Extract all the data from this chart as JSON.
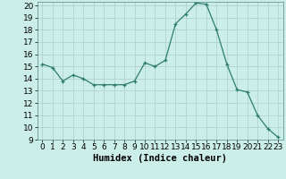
{
  "x": [
    0,
    1,
    2,
    3,
    4,
    5,
    6,
    7,
    8,
    9,
    10,
    11,
    12,
    13,
    14,
    15,
    16,
    17,
    18,
    19,
    20,
    21,
    22,
    23
  ],
  "y": [
    15.2,
    14.9,
    13.8,
    14.3,
    14.0,
    13.5,
    13.5,
    13.5,
    13.5,
    13.8,
    15.3,
    15.0,
    15.5,
    18.5,
    19.3,
    20.2,
    20.1,
    18.0,
    15.2,
    13.1,
    12.9,
    11.0,
    9.9,
    9.2
  ],
  "xlabel": "Humidex (Indice chaleur)",
  "xlim": [
    -0.5,
    23.5
  ],
  "ylim": [
    9,
    20.3
  ],
  "yticks": [
    9,
    10,
    11,
    12,
    13,
    14,
    15,
    16,
    17,
    18,
    19,
    20
  ],
  "xticks": [
    0,
    1,
    2,
    3,
    4,
    5,
    6,
    7,
    8,
    9,
    10,
    11,
    12,
    13,
    14,
    15,
    16,
    17,
    18,
    19,
    20,
    21,
    22,
    23
  ],
  "line_color": "#2e7d6e",
  "marker": "+",
  "bg_color": "#cceee8",
  "grid_color": "#aacccc",
  "tick_label_fontsize": 6.5,
  "xlabel_fontsize": 7.5
}
